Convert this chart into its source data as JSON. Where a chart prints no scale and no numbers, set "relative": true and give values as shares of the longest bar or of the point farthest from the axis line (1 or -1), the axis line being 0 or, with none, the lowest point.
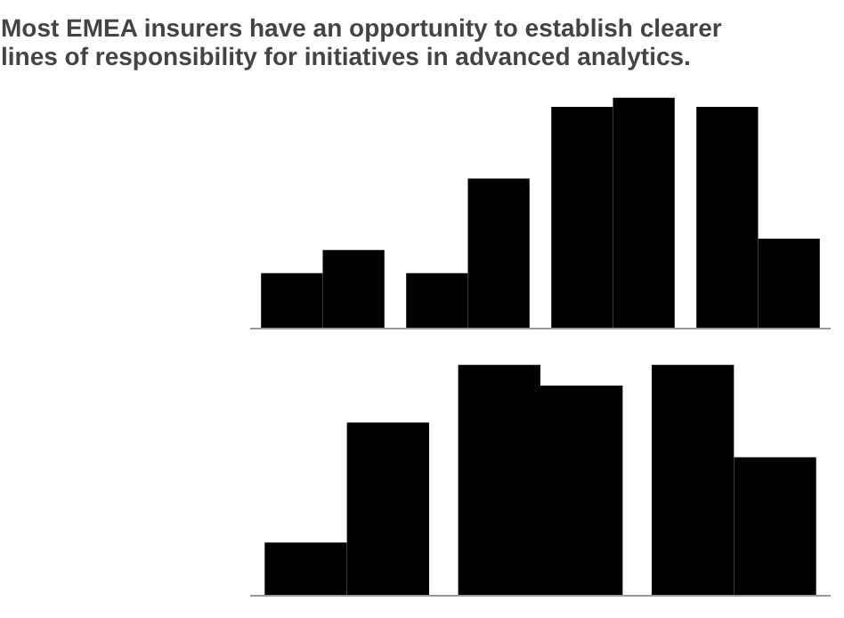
{
  "chart_data": [
    {
      "type": "bar",
      "title": "Most EMEA insurers have an opportunity to establish clearer lines of responsibility for initiatives in advanced analytics.",
      "relative": true,
      "categories": [
        null,
        null,
        null,
        null
      ],
      "series": [
        {
          "color": "#000000",
          "values": [
            0.24,
            0.24,
            0.96,
            0.96
          ]
        },
        {
          "color": "#000000",
          "values": [
            0.34,
            0.65,
            1.0,
            0.39
          ]
        }
      ]
    },
    {
      "type": "bar",
      "relative": true,
      "categories": [
        null,
        null,
        null
      ],
      "series": [
        {
          "color": "#000000",
          "values": [
            0.23,
            1.0,
            1.0
          ]
        },
        {
          "color": "#000000",
          "values": [
            0.75,
            0.91,
            0.6
          ]
        }
      ]
    }
  ]
}
